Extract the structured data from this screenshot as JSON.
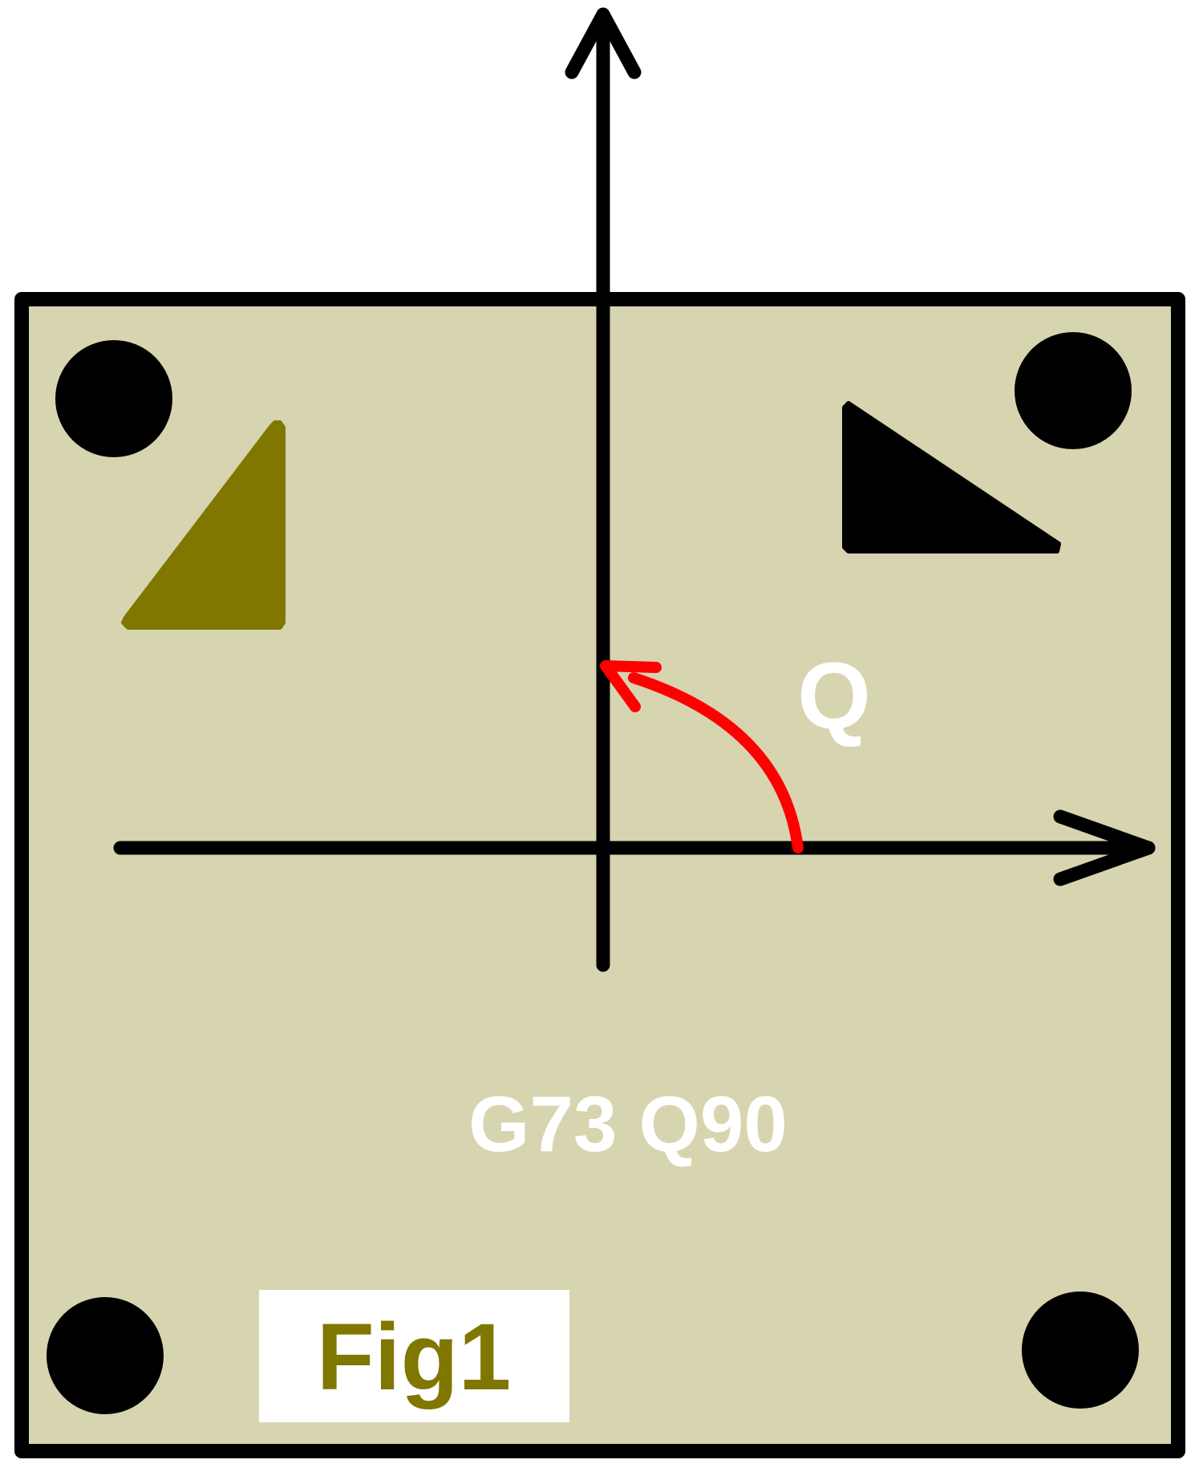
{
  "angle_label": "Q",
  "command_text": "G73 Q90",
  "figure_label": "Fig1",
  "colors": {
    "plate_fill": "#d7d4b0",
    "outline": "#000000",
    "original_part": "#7f7700",
    "rotated_part": "#000000",
    "rotation_arrow": "#ff0000",
    "label_text": "#ffffff",
    "fig_label_bg": "#ffffff",
    "fig_label_text": "#7f7700"
  },
  "icons": {
    "corner_marker": "filled-circle",
    "rotation_indicator": "curved-arrow"
  }
}
